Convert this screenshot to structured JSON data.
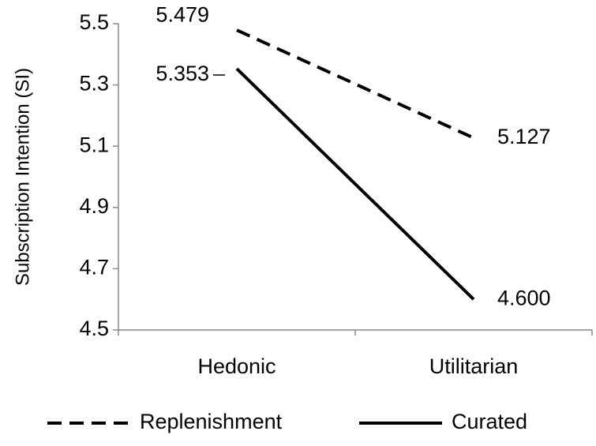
{
  "chart_data": {
    "type": "line",
    "y_label": "Subscription Intention (SI)",
    "categories": [
      "Hedonic",
      "Utilitarian"
    ],
    "series": [
      {
        "name": "Replenishment",
        "color": "#000000",
        "line_style": "dashed",
        "values": [
          5.479,
          5.127
        ],
        "value_labels": [
          "5.479",
          "5.127"
        ]
      },
      {
        "name": "Curated",
        "color": "#000000",
        "line_style": "solid",
        "values": [
          5.353,
          4.6
        ],
        "value_labels": [
          "5.353",
          "4.600"
        ]
      }
    ],
    "ylim": [
      4.5,
      5.5
    ],
    "yticks": [
      4.5,
      4.7,
      4.9,
      5.1,
      5.3,
      5.5
    ],
    "grid": false,
    "legend": "bottom"
  }
}
